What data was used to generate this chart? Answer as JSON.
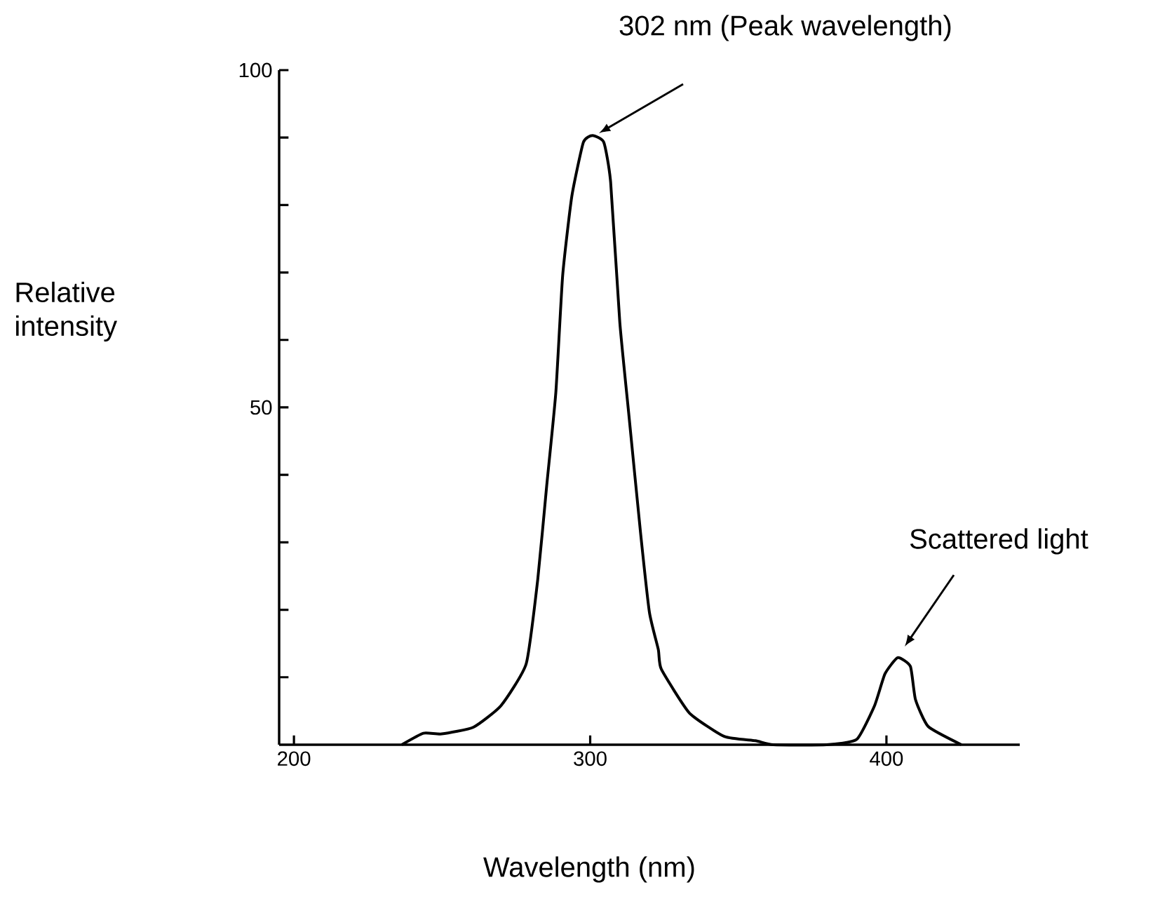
{
  "chart_data": {
    "type": "line",
    "xlabel": "Wavelength (nm)",
    "ylabel": "Relative intensity",
    "x": [
      236.4,
      243.7,
      249.9,
      260.6,
      269.9,
      278.4,
      282.3,
      285.3,
      288.4,
      290.7,
      293.8,
      297.7,
      300.8,
      304.6,
      306.9,
      310,
      313.1,
      317,
      320,
      323,
      324,
      333.5,
      345.4,
      355.8,
      361.8,
      379.8,
      390,
      396,
      399.5,
      403.8,
      408.1,
      409.8,
      414.1,
      425.3
    ],
    "series": [
      {
        "color": "#000000",
        "values": [
          0,
          1.7,
          1.6,
          2.6,
          5.8,
          12,
          24.5,
          38.3,
          52.2,
          69.5,
          81.3,
          89.3,
          90.3,
          89.3,
          83.4,
          62.6,
          48.7,
          31.4,
          19.6,
          14.1,
          11.2,
          4.7,
          1.2,
          0.6,
          0,
          0,
          0.8,
          5.8,
          10.5,
          12.9,
          11.6,
          6.7,
          2.7,
          0
        ]
      }
    ],
    "xlim": [
      195,
      445
    ],
    "ylim": [
      0,
      100
    ],
    "xticks": [
      200,
      300,
      400
    ],
    "yticks": [
      {
        "value": 10,
        "label": null
      },
      {
        "value": 20,
        "label": null
      },
      {
        "value": 30,
        "label": null
      },
      {
        "value": 40,
        "label": null
      },
      50,
      {
        "value": 60,
        "label": null
      },
      {
        "value": 70,
        "label": null
      },
      {
        "value": 80,
        "label": null
      },
      {
        "value": 90,
        "label": null
      },
      100
    ],
    "annotations": [
      "302 nm (Peak wavelength)",
      "Scattered light"
    ],
    "grid": false,
    "marker": "none",
    "line_style": "solid"
  }
}
